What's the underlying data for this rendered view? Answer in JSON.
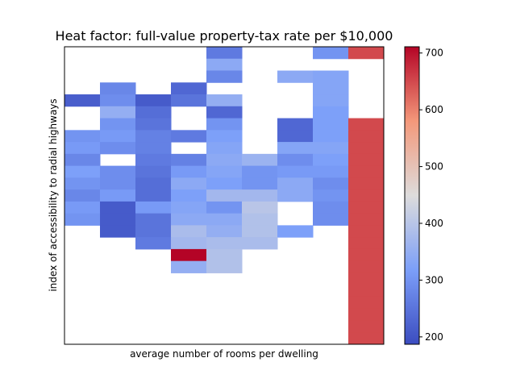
{
  "chart_data": {
    "type": "heatmap",
    "title": "Heat factor: full-value property-tax rate per $10,000",
    "xlabel": "average number of rooms per dwelling",
    "ylabel": "index of accessibility to radial highways",
    "colormap": "coolwarm",
    "colorbar": {
      "range": [
        187,
        711
      ],
      "ticks": [
        200,
        300,
        400,
        500,
        600,
        700
      ]
    },
    "grid": false,
    "cols": 9,
    "rows": 25,
    "cells": [
      [
        0,
        4,
        260
      ],
      [
        0,
        7,
        300
      ],
      [
        0,
        8,
        650
      ],
      [
        1,
        4,
        340
      ],
      [
        2,
        4,
        280
      ],
      [
        2,
        6,
        340
      ],
      [
        2,
        7,
        330
      ],
      [
        3,
        1,
        280
      ],
      [
        3,
        3,
        230
      ],
      [
        3,
        7,
        330
      ],
      [
        4,
        0,
        215
      ],
      [
        4,
        1,
        290
      ],
      [
        4,
        2,
        210
      ],
      [
        4,
        3,
        250
      ],
      [
        4,
        4,
        350
      ],
      [
        4,
        7,
        330
      ],
      [
        5,
        1,
        350
      ],
      [
        5,
        2,
        240
      ],
      [
        5,
        4,
        230
      ],
      [
        5,
        7,
        320
      ],
      [
        6,
        1,
        300
      ],
      [
        6,
        2,
        250
      ],
      [
        6,
        4,
        300
      ],
      [
        6,
        6,
        230
      ],
      [
        6,
        7,
        320
      ],
      [
        6,
        8,
        650
      ],
      [
        7,
        0,
        300
      ],
      [
        7,
        1,
        310
      ],
      [
        7,
        2,
        270
      ],
      [
        7,
        3,
        260
      ],
      [
        7,
        4,
        320
      ],
      [
        7,
        6,
        230
      ],
      [
        7,
        7,
        320
      ],
      [
        7,
        8,
        650
      ],
      [
        8,
        0,
        310
      ],
      [
        8,
        1,
        290
      ],
      [
        8,
        2,
        270
      ],
      [
        8,
        4,
        330
      ],
      [
        8,
        6,
        330
      ],
      [
        8,
        7,
        330
      ],
      [
        8,
        8,
        650
      ],
      [
        9,
        0,
        280
      ],
      [
        9,
        2,
        260
      ],
      [
        9,
        3,
        270
      ],
      [
        9,
        4,
        340
      ],
      [
        9,
        5,
        360
      ],
      [
        9,
        6,
        290
      ],
      [
        9,
        7,
        320
      ],
      [
        9,
        8,
        650
      ],
      [
        10,
        0,
        320
      ],
      [
        10,
        1,
        290
      ],
      [
        10,
        2,
        250
      ],
      [
        10,
        3,
        310
      ],
      [
        10,
        4,
        330
      ],
      [
        10,
        5,
        300
      ],
      [
        10,
        6,
        310
      ],
      [
        10,
        7,
        310
      ],
      [
        10,
        8,
        650
      ],
      [
        11,
        0,
        300
      ],
      [
        11,
        1,
        290
      ],
      [
        11,
        2,
        240
      ],
      [
        11,
        3,
        340
      ],
      [
        11,
        4,
        320
      ],
      [
        11,
        5,
        300
      ],
      [
        11,
        6,
        340
      ],
      [
        11,
        7,
        290
      ],
      [
        11,
        8,
        650
      ],
      [
        12,
        0,
        280
      ],
      [
        12,
        1,
        310
      ],
      [
        12,
        2,
        240
      ],
      [
        12,
        3,
        320
      ],
      [
        12,
        4,
        370
      ],
      [
        12,
        5,
        370
      ],
      [
        12,
        6,
        340
      ],
      [
        12,
        7,
        300
      ],
      [
        12,
        8,
        650
      ],
      [
        13,
        0,
        310
      ],
      [
        13,
        1,
        210
      ],
      [
        13,
        2,
        310
      ],
      [
        13,
        3,
        330
      ],
      [
        13,
        4,
        300
      ],
      [
        13,
        5,
        400
      ],
      [
        13,
        7,
        290
      ],
      [
        13,
        8,
        650
      ],
      [
        14,
        0,
        300
      ],
      [
        14,
        1,
        210
      ],
      [
        14,
        2,
        250
      ],
      [
        14,
        3,
        340
      ],
      [
        14,
        4,
        340
      ],
      [
        14,
        5,
        390
      ],
      [
        14,
        7,
        290
      ],
      [
        14,
        8,
        650
      ],
      [
        15,
        1,
        210
      ],
      [
        15,
        2,
        250
      ],
      [
        15,
        3,
        380
      ],
      [
        15,
        4,
        350
      ],
      [
        15,
        5,
        390
      ],
      [
        15,
        6,
        320
      ],
      [
        15,
        8,
        650
      ],
      [
        16,
        2,
        260
      ],
      [
        16,
        3,
        370
      ],
      [
        16,
        4,
        380
      ],
      [
        16,
        5,
        380
      ],
      [
        16,
        8,
        650
      ],
      [
        17,
        3,
        711
      ],
      [
        17,
        4,
        390
      ],
      [
        17,
        8,
        650
      ],
      [
        18,
        3,
        350
      ],
      [
        18,
        4,
        390
      ],
      [
        18,
        8,
        650
      ],
      [
        19,
        8,
        650
      ],
      [
        20,
        8,
        650
      ],
      [
        21,
        8,
        650
      ],
      [
        22,
        8,
        650
      ],
      [
        23,
        8,
        650
      ],
      [
        24,
        8,
        650
      ]
    ]
  }
}
